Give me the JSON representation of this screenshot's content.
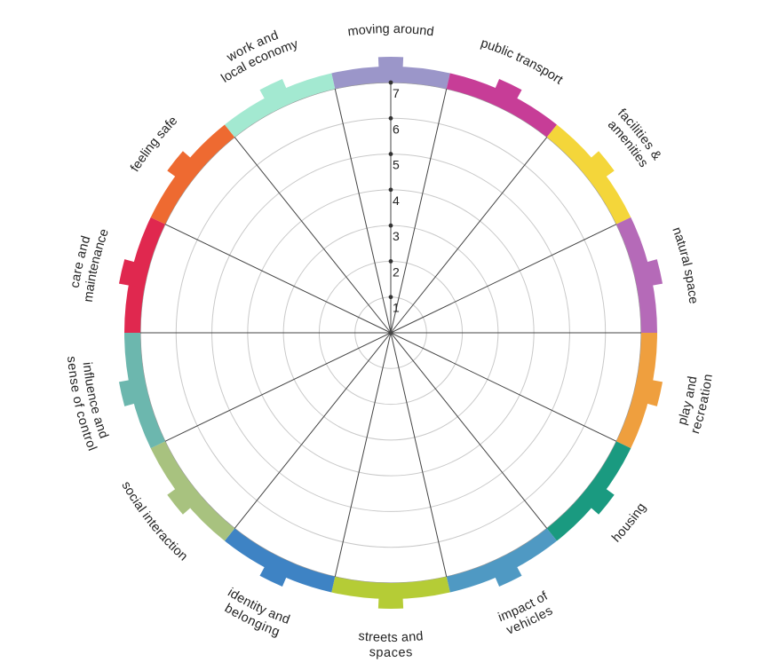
{
  "chart_data": {
    "type": "radar",
    "scale": {
      "min": 0,
      "max": 7,
      "ticks": [
        "1",
        "2",
        "3",
        "4",
        "5",
        "6",
        "7"
      ]
    },
    "categories": [
      {
        "label": [
          "moving around"
        ],
        "color": "#9b96c9"
      },
      {
        "label": [
          "public transport"
        ],
        "color": "#c73d97"
      },
      {
        "label": [
          "facilities &",
          "amenities"
        ],
        "color": "#f4d63a"
      },
      {
        "label": [
          "natural space"
        ],
        "color": "#b56ab8"
      },
      {
        "label": [
          "play and",
          "recreation"
        ],
        "color": "#ef9f3e"
      },
      {
        "label": [
          "housing"
        ],
        "color": "#1a9a80"
      },
      {
        "label": [
          "impact of",
          "vehicles"
        ],
        "color": "#4f99c3"
      },
      {
        "label": [
          "streets and",
          "spaces"
        ],
        "color": "#b5cc36"
      },
      {
        "label": [
          "identity and",
          "belonging"
        ],
        "color": "#3e83c4"
      },
      {
        "label": [
          "social interaction"
        ],
        "color": "#a8c27f"
      },
      {
        "label": [
          "influence and",
          "sense of control"
        ],
        "color": "#6cb7ae"
      },
      {
        "label": [
          "care and",
          "maintenance"
        ],
        "color": "#e0284f"
      },
      {
        "label": [
          "feeling safe"
        ],
        "color": "#ee6a31"
      },
      {
        "label": [
          "work and",
          "local economy"
        ],
        "color": "#a3e9d1"
      }
    ]
  }
}
